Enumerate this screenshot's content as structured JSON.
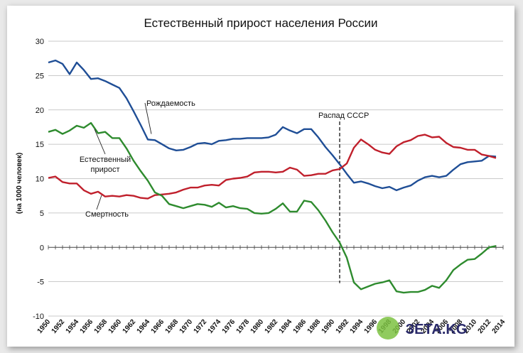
{
  "chart_data": {
    "type": "line",
    "title": "Естественный прирост населения России",
    "ylabel": "(на 1000 человек)",
    "xlabel": "",
    "ylim": [
      -10,
      30
    ],
    "xlim": [
      1950,
      2014
    ],
    "yticks": [
      30,
      25,
      20,
      15,
      10,
      5,
      0,
      -5,
      -10
    ],
    "xticks": [
      1950,
      1952,
      1954,
      1956,
      1958,
      1960,
      1962,
      1964,
      1966,
      1968,
      1970,
      1972,
      1974,
      1976,
      1978,
      1980,
      1982,
      1984,
      1986,
      1988,
      1990,
      1992,
      1994,
      1996,
      1998,
      2000,
      2002,
      2004,
      2006,
      2008,
      2010,
      2012,
      2014
    ],
    "xtick_labels": [
      "1950",
      "1952",
      "1954",
      "1956",
      "1958",
      "1960",
      "1962",
      "1964",
      "1966",
      "1968",
      "1970",
      "1972",
      "1974",
      "1976",
      "1978",
      "1980",
      "1982",
      "1984",
      "1986",
      "1988",
      "1990",
      "1992",
      "1994",
      "1996",
      "1998",
      "2000",
      "2002",
      "2004",
      "2006",
      "2008",
      "2010",
      "2012",
      "2014"
    ],
    "x": [
      1950,
      1951,
      1952,
      1953,
      1954,
      1955,
      1956,
      1957,
      1958,
      1959,
      1960,
      1961,
      1962,
      1963,
      1964,
      1965,
      1966,
      1967,
      1968,
      1969,
      1970,
      1971,
      1972,
      1973,
      1974,
      1975,
      1976,
      1977,
      1978,
      1979,
      1980,
      1981,
      1982,
      1983,
      1984,
      1985,
      1986,
      1987,
      1988,
      1989,
      1990,
      1991,
      1992,
      1993,
      1994,
      1995,
      1996,
      1997,
      1998,
      1999,
      2000,
      2001,
      2002,
      2003,
      2004,
      2005,
      2006,
      2007,
      2008,
      2009,
      2010,
      2011,
      2012,
      2013
    ],
    "series": [
      {
        "name": "Рождаемость",
        "color": "#1f4e96",
        "values": [
          26.9,
          27.2,
          26.7,
          25.2,
          26.9,
          25.8,
          24.5,
          24.6,
          24.2,
          23.7,
          23.2,
          21.7,
          19.8,
          17.8,
          15.7,
          15.6,
          15.0,
          14.4,
          14.1,
          14.2,
          14.6,
          15.1,
          15.2,
          15.0,
          15.5,
          15.6,
          15.8,
          15.8,
          15.9,
          15.9,
          15.9,
          16.0,
          16.4,
          17.5,
          17.0,
          16.6,
          17.2,
          17.2,
          16.0,
          14.6,
          13.4,
          12.1,
          10.7,
          9.4,
          9.6,
          9.3,
          8.9,
          8.6,
          8.8,
          8.3,
          8.7,
          9.0,
          9.7,
          10.2,
          10.4,
          10.2,
          10.4,
          11.3,
          12.1,
          12.4,
          12.5,
          12.6,
          13.3,
          13.2
        ]
      },
      {
        "name": "Смертность",
        "color": "#c0202c",
        "values": [
          10.1,
          10.3,
          9.5,
          9.3,
          9.3,
          8.3,
          7.8,
          8.1,
          7.4,
          7.5,
          7.4,
          7.6,
          7.5,
          7.2,
          7.1,
          7.6,
          7.7,
          7.8,
          8.0,
          8.4,
          8.7,
          8.7,
          9.0,
          9.1,
          9.0,
          9.8,
          10.0,
          10.1,
          10.3,
          10.9,
          11.0,
          11.0,
          10.9,
          11.0,
          11.6,
          11.3,
          10.4,
          10.5,
          10.7,
          10.7,
          11.2,
          11.4,
          12.2,
          14.5,
          15.7,
          15.0,
          14.2,
          13.8,
          13.6,
          14.7,
          15.3,
          15.6,
          16.2,
          16.4,
          16.0,
          16.1,
          15.2,
          14.6,
          14.5,
          14.2,
          14.2,
          13.5,
          13.3,
          13.0
        ]
      },
      {
        "name": "Естественный прирост",
        "color": "#2e8b2e",
        "values": [
          16.8,
          17.1,
          16.5,
          17.0,
          17.7,
          17.4,
          18.1,
          16.6,
          16.8,
          15.9,
          15.9,
          14.4,
          12.6,
          11.1,
          9.7,
          8.0,
          7.5,
          6.3,
          6.0,
          5.7,
          6.0,
          6.3,
          6.2,
          5.9,
          6.5,
          5.8,
          6.0,
          5.7,
          5.6,
          5.0,
          4.9,
          5.0,
          5.6,
          6.4,
          5.2,
          5.2,
          6.8,
          6.6,
          5.4,
          3.9,
          2.2,
          0.7,
          -1.5,
          -5.1,
          -6.1,
          -5.7,
          -5.3,
          -5.1,
          -4.8,
          -6.4,
          -6.6,
          -6.5,
          -6.5,
          -6.2,
          -5.6,
          -5.9,
          -4.8,
          -3.3,
          -2.5,
          -1.8,
          -1.7,
          -0.9,
          0.0,
          0.2
        ]
      }
    ],
    "annotations": {
      "birth_label": "Рождаемость",
      "death_label": "Смертность",
      "natural_label_line1": "Естественный",
      "natural_label_line2": "прирост",
      "ussr_label": "Распад СССР",
      "ussr_year": 1991
    },
    "grid": true
  },
  "watermark": {
    "text": "ЗЕТА.KG"
  }
}
